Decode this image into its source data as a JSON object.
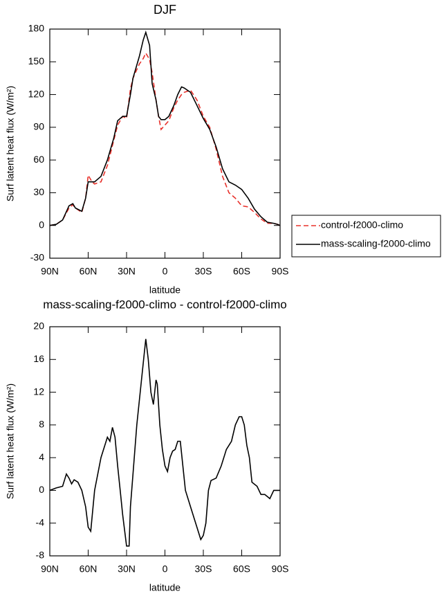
{
  "chart_data": [
    {
      "type": "line",
      "title": "DJF",
      "xlabel": "latitude",
      "ylabel": "Surf latent heat flux (W/m²)",
      "x": [
        90,
        85,
        80,
        75,
        72,
        70,
        65,
        62,
        60,
        57,
        55,
        50,
        45,
        40,
        37,
        33,
        30,
        27,
        25,
        20,
        17,
        15,
        12,
        10,
        7,
        5,
        3,
        0,
        -3,
        -7,
        -10,
        -13,
        -15,
        -20,
        -25,
        -30,
        -35,
        -40,
        -45,
        -50,
        -55,
        -60,
        -65,
        -70,
        -75,
        -80,
        -85,
        -88,
        -90
      ],
      "series": [
        {
          "name": "control-f2000-climo",
          "color": "#e8302a",
          "dash": true,
          "values": [
            0,
            1,
            5,
            16,
            19,
            16,
            12,
            25,
            46,
            40,
            38,
            40,
            55,
            78,
            92,
            100,
            98,
            125,
            135,
            148,
            153,
            158,
            152,
            140,
            115,
            100,
            88,
            92,
            96,
            108,
            115,
            120,
            122,
            124,
            115,
            100,
            90,
            70,
            45,
            30,
            25,
            18,
            17,
            12,
            6,
            2,
            2,
            1,
            0
          ]
        },
        {
          "name": "mass-scaling-f2000-climo",
          "color": "#000000",
          "dash": false,
          "values": [
            0,
            1,
            5,
            18,
            20,
            16,
            13,
            25,
            40,
            40,
            40,
            45,
            60,
            80,
            96,
            100,
            100,
            120,
            135,
            155,
            170,
            177,
            165,
            130,
            115,
            100,
            97,
            97,
            100,
            110,
            120,
            127,
            126,
            122,
            110,
            98,
            88,
            72,
            52,
            40,
            37,
            33,
            25,
            15,
            8,
            3,
            2,
            1,
            0
          ]
        }
      ],
      "xlim": [
        90,
        -90
      ],
      "xticks": [
        {
          "value": 90,
          "label": "90N"
        },
        {
          "value": 60,
          "label": "60N"
        },
        {
          "value": 30,
          "label": "30N"
        },
        0,
        {
          "value": -30,
          "label": "30S"
        },
        {
          "value": -60,
          "label": "60S"
        },
        {
          "value": -90,
          "label": "90S"
        }
      ],
      "ylim": [
        -30,
        180
      ],
      "yticks": [
        -30,
        0,
        30,
        60,
        90,
        120,
        150,
        180
      ],
      "legend": "right"
    },
    {
      "type": "line",
      "title": "mass-scaling-f2000-climo - control-f2000-climo",
      "xlabel": "latitude",
      "ylabel": "Surf latent heat flux (W/m²)",
      "x": [
        90,
        85,
        80,
        77,
        75,
        73,
        71,
        68,
        65,
        62,
        60,
        58,
        55,
        50,
        45,
        43,
        41,
        39,
        37,
        35,
        33,
        30,
        28,
        27,
        25,
        22,
        20,
        18,
        16,
        15,
        13,
        11,
        9,
        7,
        6,
        4,
        2,
        0,
        -2,
        -4,
        -6,
        -8,
        -10,
        -12,
        -14,
        -16,
        -20,
        -24,
        -28,
        -30,
        -32,
        -34,
        -36,
        -40,
        -44,
        -48,
        -52,
        -55,
        -58,
        -60,
        -62,
        -64,
        -66,
        -68,
        -72,
        -75,
        -78,
        -82,
        -85,
        -90
      ],
      "values": [
        0,
        0.3,
        0.5,
        2,
        1.5,
        0.8,
        1.3,
        1,
        0,
        -2,
        -4.5,
        -5,
        0,
        4,
        6.5,
        6,
        7.7,
        6.5,
        3,
        0,
        -3,
        -6.8,
        -6.8,
        -2,
        2,
        8,
        11,
        14,
        17,
        18.5,
        16,
        12,
        10.5,
        13.5,
        13,
        8,
        5,
        3,
        2.3,
        4,
        4.8,
        5,
        6,
        6,
        3,
        0,
        -2,
        -4,
        -6,
        -5.5,
        -4,
        0,
        1.2,
        1.5,
        3,
        5,
        6,
        8,
        9,
        9,
        8,
        5.5,
        4,
        1,
        0.5,
        -0.5,
        -0.5,
        -1,
        0,
        0
      ],
      "color": "#000000",
      "xlim": [
        90,
        -90
      ],
      "xticks": [
        {
          "value": 90,
          "label": "90N"
        },
        {
          "value": 60,
          "label": "60N"
        },
        {
          "value": 30,
          "label": "30N"
        },
        0,
        {
          "value": -30,
          "label": "30S"
        },
        {
          "value": -60,
          "label": "60S"
        },
        {
          "value": -90,
          "label": "90S"
        }
      ],
      "ylim": [
        -8,
        20
      ],
      "yticks": [
        -8,
        -4,
        0,
        4,
        8,
        12,
        16,
        20
      ]
    }
  ]
}
